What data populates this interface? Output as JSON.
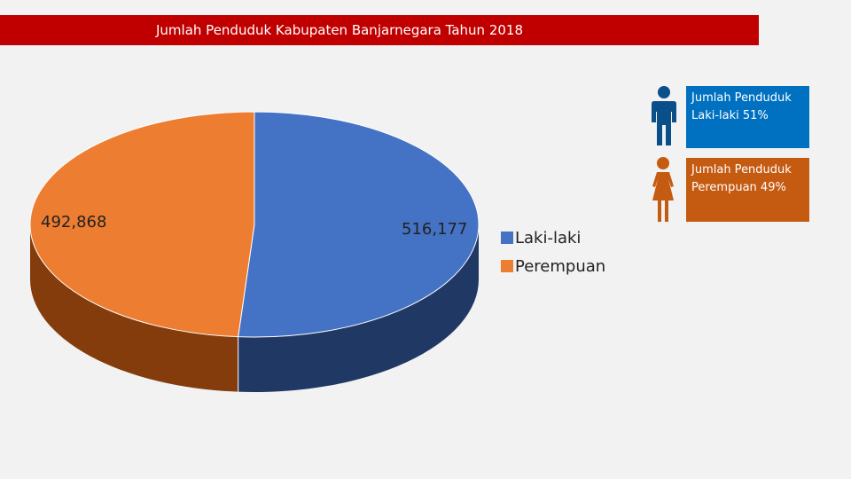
{
  "title": "Jumlah Penduduk Kabupaten Banjarnegara Tahun 2018",
  "colors": {
    "title_bg": "#c00000",
    "male": "#4472c4",
    "male_side": "#203864",
    "female": "#ed7d31",
    "female_side": "#843c0c",
    "male_box": "#0070c0",
    "female_box": "#c55a11"
  },
  "chart_data": {
    "type": "pie",
    "style": "3d",
    "categories": [
      "Laki-laki",
      "Perempuan"
    ],
    "values": [
      516177,
      492868
    ],
    "data_labels": [
      "516,177",
      "492,868"
    ],
    "legend": [
      "Laki-laki",
      "Perempuan"
    ],
    "legend_position": "right"
  },
  "info": {
    "male": "Jumlah Penduduk Laki-laki 51%",
    "female": "Jumlah Penduduk Perempuan 49%"
  },
  "icons": {
    "male": "male-person-icon",
    "female": "female-person-icon"
  }
}
